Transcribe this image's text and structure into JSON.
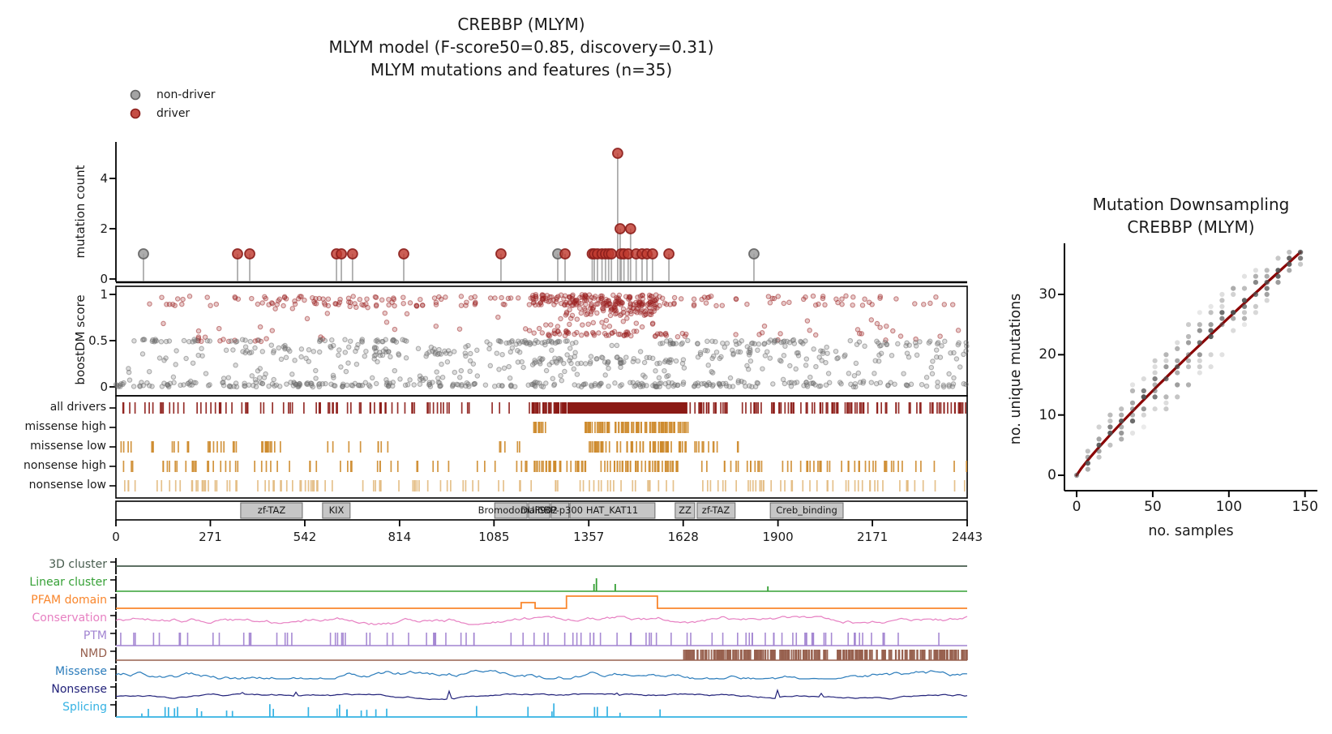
{
  "seed": 1337,
  "title": {
    "line1": "CREBBP (MLYM)",
    "line2": "MLYM model (F-score50=0.85, discovery=0.31)",
    "line3": "MLYM mutations and features (n=35)"
  },
  "legend": {
    "items": [
      {
        "label": "non-driver",
        "fill": "#9a9a9a",
        "edge": "#636363"
      },
      {
        "label": "driver",
        "fill": "#bf3a30",
        "edge": "#8c1f1c"
      }
    ]
  },
  "colors": {
    "driver": "#bf3a30",
    "driver_edge": "#8c1f1c",
    "nondriver": "#9a9a9a",
    "nondriver_edge": "#636363",
    "stem": "#a8a8a8",
    "axis": "#000000",
    "score_red": "#9c2121",
    "score_gray": "#6e6e6e",
    "all_drivers": "#8b1a15",
    "orange_high": "#cd8a2b",
    "orange_low": "#e2ba7f",
    "domain_fill": "#c6c6c6",
    "domain_edge": "#6b6b6b",
    "downsample_dot": "#4d4d4d",
    "downsample_line": "#8b0000"
  },
  "chart_data": [
    {
      "id": "needle_plot",
      "type": "scatter",
      "ylabel": "mutation count",
      "yticks": [
        0,
        2,
        4
      ],
      "xlim": [
        0,
        2443
      ],
      "classes": [
        "non-driver",
        "driver"
      ],
      "needles": [
        [
          79,
          1,
          "non-driver"
        ],
        [
          349,
          1,
          "driver"
        ],
        [
          384,
          1,
          "driver"
        ],
        [
          633,
          1,
          "driver"
        ],
        [
          647,
          1,
          "driver"
        ],
        [
          679,
          1,
          "driver"
        ],
        [
          826,
          1,
          "driver"
        ],
        [
          1105,
          1,
          "driver"
        ],
        [
          1268,
          1,
          "non-driver"
        ],
        [
          1289,
          1,
          "driver"
        ],
        [
          1367,
          1,
          "driver"
        ],
        [
          1373,
          1,
          "driver"
        ],
        [
          1382,
          1,
          "driver"
        ],
        [
          1395,
          1,
          "driver"
        ],
        [
          1405,
          1,
          "driver"
        ],
        [
          1414,
          1,
          "driver"
        ],
        [
          1422,
          1,
          "driver"
        ],
        [
          1440,
          5,
          "driver"
        ],
        [
          1447,
          2,
          "driver"
        ],
        [
          1450,
          1,
          "driver"
        ],
        [
          1458,
          1,
          "driver"
        ],
        [
          1470,
          1,
          "driver"
        ],
        [
          1477,
          2,
          "driver"
        ],
        [
          1493,
          1,
          "driver"
        ],
        [
          1510,
          1,
          "driver"
        ],
        [
          1524,
          1,
          "driver"
        ],
        [
          1540,
          1,
          "driver"
        ],
        [
          1587,
          1,
          "driver"
        ],
        [
          1831,
          1,
          "non-driver"
        ]
      ]
    },
    {
      "id": "boostdm_score",
      "type": "scatter",
      "ylabel": "boostDM score",
      "yticks": [
        0,
        0.5,
        1
      ],
      "xlim": [
        0,
        2443
      ],
      "ylim": [
        0,
        1
      ],
      "bands": [
        {
          "cls": "driver",
          "x": [
            50,
            2430
          ],
          "y": [
            0.945,
            0.985
          ],
          "n": 90
        },
        {
          "cls": "driver",
          "x": [
            50,
            2430
          ],
          "y": [
            0.875,
            0.915
          ],
          "n": 85
        },
        {
          "cls": "driver",
          "x": [
            1190,
            1560
          ],
          "y": [
            0.88,
            1.0
          ],
          "n": 140
        },
        {
          "cls": "driver",
          "x": [
            1290,
            1555
          ],
          "y": [
            0.77,
            0.87
          ],
          "n": 65
        },
        {
          "cls": "driver",
          "x": [
            430,
            900
          ],
          "y": [
            0.84,
            0.95
          ],
          "n": 25
        },
        {
          "cls": "driver",
          "x": [
            1190,
            1560
          ],
          "y": [
            0.63,
            0.75
          ],
          "n": 18
        },
        {
          "cls": "driver",
          "x": [
            1180,
            1500
          ],
          "y": [
            0.55,
            0.61
          ],
          "n": 45
        },
        {
          "cls": "driver",
          "x": [
            1540,
            1645
          ],
          "y": [
            0.54,
            0.58
          ],
          "n": 12
        },
        {
          "cls": "driver",
          "x": [
            230,
            730
          ],
          "y": [
            0.49,
            0.54
          ],
          "n": 15
        },
        {
          "cls": "driver",
          "x": [
            100,
            2430
          ],
          "y": [
            0.56,
            0.8
          ],
          "n": 28
        },
        {
          "cls": "driver",
          "x": [
            1840,
            2430
          ],
          "y": [
            0.5,
            0.62
          ],
          "n": 12
        },
        {
          "cls": "non-driver",
          "x": [
            0,
            2443
          ],
          "y": [
            0.0,
            0.05
          ],
          "n": 290
        },
        {
          "cls": "non-driver",
          "x": [
            0,
            2443
          ],
          "y": [
            0.06,
            0.45
          ],
          "n": 190
        },
        {
          "cls": "non-driver",
          "x": [
            30,
            420
          ],
          "y": [
            0.485,
            0.515
          ],
          "n": 28
        },
        {
          "cls": "non-driver",
          "x": [
            560,
            860
          ],
          "y": [
            0.485,
            0.515
          ],
          "n": 24
        },
        {
          "cls": "non-driver",
          "x": [
            1050,
            1330
          ],
          "y": [
            0.455,
            0.5
          ],
          "n": 38
        },
        {
          "cls": "non-driver",
          "x": [
            1556,
            1980
          ],
          "y": [
            0.46,
            0.51
          ],
          "n": 48
        },
        {
          "cls": "non-driver",
          "x": [
            2090,
            2443
          ],
          "y": [
            0.44,
            0.5
          ],
          "n": 28
        },
        {
          "cls": "non-driver",
          "x": [
            1180,
            1640
          ],
          "y": [
            0.25,
            0.33
          ],
          "n": 55
        },
        {
          "cls": "non-driver",
          "x": [
            700,
            1160
          ],
          "y": [
            0.33,
            0.44
          ],
          "n": 38
        },
        {
          "cls": "non-driver",
          "x": [
            350,
            700
          ],
          "y": [
            0.36,
            0.46
          ],
          "n": 26
        },
        {
          "cls": "non-driver",
          "x": [
            1660,
            2443
          ],
          "y": [
            0.3,
            0.4
          ],
          "n": 36
        }
      ]
    },
    {
      "id": "consequence_tracks",
      "type": "heatmap",
      "rows": [
        {
          "label": "all drivers",
          "color": "#8b1a15",
          "segments": [
            [
              15,
              1187,
              80
            ],
            [
              1187,
              1296,
              45
            ],
            [
              1645,
              2443,
              105
            ]
          ],
          "solid": [
            [
              1296,
              1640
            ]
          ]
        },
        {
          "label": "missense high",
          "color": "#cd8a2b",
          "segments": [
            [
              1194,
              1238,
              12
            ],
            [
              1345,
              1645,
              90
            ]
          ],
          "solid": []
        },
        {
          "label": "missense low",
          "color": "#cd8a2b",
          "segments": [
            [
              5,
              45,
              4
            ],
            [
              95,
              120,
              3
            ],
            [
              160,
              215,
              6
            ],
            [
              260,
              365,
              10
            ],
            [
              385,
              480,
              12
            ],
            [
              600,
              790,
              8
            ],
            [
              1100,
              1160,
              5
            ],
            [
              1350,
              1640,
              62
            ],
            [
              1650,
              1740,
              9
            ],
            [
              1780,
              1790,
              2
            ]
          ],
          "solid": []
        },
        {
          "label": "nonsense high",
          "color": "#cd8a2b",
          "segments": [
            [
              15,
              1180,
              52
            ],
            [
              1190,
              1614,
              75
            ],
            [
              1675,
              2443,
              52
            ]
          ],
          "solid": []
        },
        {
          "label": "nonsense low",
          "color": "#e2ba7f",
          "segments": [
            [
              5,
              1600,
              90
            ],
            [
              1650,
              2443,
              45
            ]
          ],
          "solid": []
        }
      ]
    },
    {
      "id": "protein_domains",
      "type": "table",
      "xticks": [
        0,
        271,
        542,
        814,
        1085,
        1357,
        1628,
        1900,
        2171,
        2443
      ],
      "domains": [
        {
          "label": "zf-TAZ",
          "start": 358,
          "end": 535
        },
        {
          "label": "KIX",
          "start": 593,
          "end": 672
        },
        {
          "label": "Bromodomain",
          "start": 1087,
          "end": 1180
        },
        {
          "label": "DUF902",
          "start": 1184,
          "end": 1245
        },
        {
          "label": "CBP-p300",
          "start": 1249,
          "end": 1300
        },
        {
          "label": "HAT_KAT11",
          "start": 1303,
          "end": 1547
        },
        {
          "label": "ZZ",
          "start": 1605,
          "end": 1661
        },
        {
          "label": "zf-TAZ",
          "start": 1668,
          "end": 1777
        },
        {
          "label": "Creb_binding",
          "start": 1878,
          "end": 2087
        }
      ]
    },
    {
      "id": "feature_tracks",
      "type": "line",
      "rows": [
        {
          "label": "3D cluster",
          "color": "#475c4e",
          "kind": "flat"
        },
        {
          "label": "Linear cluster",
          "color": "#35a035",
          "kind": "spikes",
          "spikes": [
            [
              1372,
              9
            ],
            [
              1379,
              16
            ],
            [
              1433,
              9
            ],
            [
              1871,
              6
            ]
          ]
        },
        {
          "label": "PFAM domain",
          "color": "#f9862c",
          "kind": "steps",
          "steps": [
            [
              1163,
              1203,
              7
            ],
            [
              1293,
              1554,
              15
            ]
          ]
        },
        {
          "label": "Conservation",
          "color": "#e780c2",
          "kind": "noise",
          "amp": 3.5,
          "max": 5,
          "center_off": 2
        },
        {
          "label": "PTM",
          "color": "#a284d1",
          "kind": "ticks",
          "segments": [
            [
              10,
              2443,
              68
            ],
            [
              1400,
              2150,
              26
            ]
          ],
          "h": 16
        },
        {
          "label": "NMD",
          "color": "#97604e",
          "kind": "block",
          "segments": [
            [
              1629,
              2045,
              150
            ],
            [
              2068,
              2443,
              130
            ]
          ],
          "h": 13
        },
        {
          "label": "Missense",
          "color": "#2b7cbb",
          "kind": "noise",
          "amp": 4,
          "max": 6,
          "center_off": 2
        },
        {
          "label": "Nonsense",
          "color": "#22227a",
          "kind": "noise",
          "amp": 1.7,
          "max": 3.5,
          "center_off": 8,
          "spikep": 0.015,
          "spikeh": 8
        },
        {
          "label": "Splicing",
          "color": "#35b2e3",
          "kind": "upspikes",
          "n": 30,
          "range": [
            20,
            1620
          ],
          "hmin": 4,
          "hmax": 17
        }
      ]
    },
    {
      "id": "mutation_downsampling",
      "type": "scatter",
      "title1": "Mutation Downsampling",
      "title2": "CREBBP (MLYM)",
      "xlabel": "no. samples",
      "ylabel": "no. unique mutations",
      "xticks": [
        0,
        50,
        100,
        150
      ],
      "yticks": [
        0,
        10,
        20,
        30
      ],
      "x_max": 147,
      "y_max": 37,
      "trend_exponent": 0.9,
      "n_columns": 21,
      "trend_points": [
        [
          0,
          0
        ],
        [
          15,
          4.7
        ],
        [
          30,
          8.8
        ],
        [
          45,
          12.7
        ],
        [
          60,
          16.5
        ],
        [
          75,
          20.2
        ],
        [
          90,
          23.8
        ],
        [
          105,
          27.3
        ],
        [
          120,
          30.8
        ],
        [
          135,
          34.3
        ],
        [
          147,
          37
        ]
      ]
    }
  ]
}
